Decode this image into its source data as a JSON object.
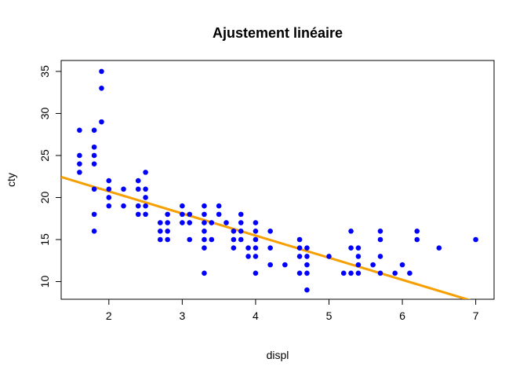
{
  "chart_data": {
    "type": "scatter",
    "title": "Ajustement linéaire",
    "xlabel": "displ",
    "ylabel": "cty",
    "xlim": [
      1.35,
      7.25
    ],
    "ylim": [
      7.9,
      36.3
    ],
    "x_ticks": [
      2,
      3,
      4,
      5,
      6,
      7
    ],
    "y_ticks": [
      10,
      15,
      20,
      25,
      30,
      35
    ],
    "grid": false,
    "legend": "none",
    "colors": {
      "points": "#0000ff",
      "fit_line": "#f5a000"
    },
    "series": [
      {
        "values": [
          [
            1.6,
            28
          ],
          [
            1.6,
            25
          ],
          [
            1.6,
            24
          ],
          [
            1.6,
            23
          ],
          [
            1.8,
            28
          ],
          [
            1.8,
            26
          ],
          [
            1.8,
            25
          ],
          [
            1.8,
            24
          ],
          [
            1.8,
            21
          ],
          [
            1.8,
            18
          ],
          [
            1.8,
            16
          ],
          [
            1.9,
            35
          ],
          [
            1.9,
            33
          ],
          [
            1.9,
            29
          ],
          [
            2.0,
            22
          ],
          [
            2.0,
            21
          ],
          [
            2.0,
            20
          ],
          [
            2.0,
            19
          ],
          [
            2.2,
            21
          ],
          [
            2.2,
            19
          ],
          [
            2.4,
            22
          ],
          [
            2.4,
            21
          ],
          [
            2.4,
            19
          ],
          [
            2.4,
            18
          ],
          [
            2.5,
            23
          ],
          [
            2.5,
            21
          ],
          [
            2.5,
            20
          ],
          [
            2.5,
            19
          ],
          [
            2.5,
            18
          ],
          [
            2.7,
            17
          ],
          [
            2.7,
            16
          ],
          [
            2.7,
            15
          ],
          [
            2.8,
            18
          ],
          [
            2.8,
            17
          ],
          [
            2.8,
            16
          ],
          [
            2.8,
            15
          ],
          [
            3.0,
            19
          ],
          [
            3.0,
            18
          ],
          [
            3.0,
            17
          ],
          [
            3.1,
            18
          ],
          [
            3.1,
            17
          ],
          [
            3.1,
            15
          ],
          [
            3.3,
            19
          ],
          [
            3.3,
            18
          ],
          [
            3.3,
            17
          ],
          [
            3.3,
            16
          ],
          [
            3.3,
            15
          ],
          [
            3.3,
            14
          ],
          [
            3.3,
            11
          ],
          [
            3.4,
            17
          ],
          [
            3.4,
            15
          ],
          [
            3.5,
            19
          ],
          [
            3.5,
            18
          ],
          [
            3.6,
            17
          ],
          [
            3.7,
            16
          ],
          [
            3.7,
            15
          ],
          [
            3.7,
            14
          ],
          [
            3.8,
            18
          ],
          [
            3.8,
            17
          ],
          [
            3.8,
            16
          ],
          [
            3.8,
            15
          ],
          [
            3.9,
            14
          ],
          [
            3.9,
            13
          ],
          [
            4.0,
            17
          ],
          [
            4.0,
            16
          ],
          [
            4.0,
            15
          ],
          [
            4.0,
            14
          ],
          [
            4.0,
            13
          ],
          [
            4.0,
            11
          ],
          [
            4.2,
            16
          ],
          [
            4.2,
            14
          ],
          [
            4.2,
            12
          ],
          [
            4.4,
            12
          ],
          [
            4.6,
            15
          ],
          [
            4.6,
            14
          ],
          [
            4.6,
            13
          ],
          [
            4.6,
            11
          ],
          [
            4.7,
            14
          ],
          [
            4.7,
            13
          ],
          [
            4.7,
            12
          ],
          [
            4.7,
            11
          ],
          [
            4.7,
            9
          ],
          [
            5.0,
            13
          ],
          [
            5.2,
            11
          ],
          [
            5.3,
            16
          ],
          [
            5.3,
            14
          ],
          [
            5.3,
            11
          ],
          [
            5.4,
            14
          ],
          [
            5.4,
            13
          ],
          [
            5.4,
            12
          ],
          [
            5.4,
            11
          ],
          [
            5.6,
            12
          ],
          [
            5.7,
            16
          ],
          [
            5.7,
            15
          ],
          [
            5.7,
            13
          ],
          [
            5.7,
            11
          ],
          [
            5.9,
            11
          ],
          [
            6.0,
            12
          ],
          [
            6.1,
            11
          ],
          [
            6.2,
            16
          ],
          [
            6.2,
            15
          ],
          [
            6.5,
            14
          ],
          [
            7.0,
            15
          ]
        ]
      }
    ],
    "fit_line": {
      "intercept": 25.99,
      "slope": -2.63
    }
  }
}
